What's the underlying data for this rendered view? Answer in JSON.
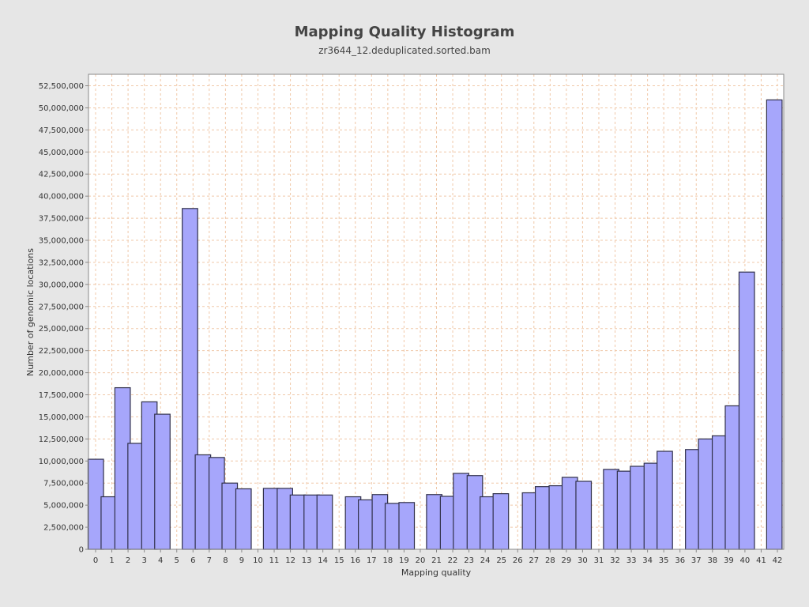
{
  "chart_data": {
    "type": "bar",
    "title": "Mapping Quality Histogram",
    "subtitle": "zr3644_12.deduplicated.sorted.bam",
    "xlabel": "Mapping quality",
    "ylabel": "Number of genomic locations",
    "x_ticks": [
      "0",
      "1",
      "2",
      "3",
      "4",
      "5",
      "6",
      "7",
      "8",
      "9",
      "10",
      "11",
      "12",
      "13",
      "14",
      "15",
      "16",
      "17",
      "18",
      "19",
      "20",
      "21",
      "22",
      "23",
      "24",
      "25",
      "26",
      "27",
      "28",
      "29",
      "30",
      "31",
      "32",
      "33",
      "34",
      "35",
      "36",
      "37",
      "38",
      "39",
      "40",
      "41",
      "42"
    ],
    "y_ticks": [
      "0",
      "2,500,000",
      "5,000,000",
      "7,500,000",
      "10,000,000",
      "12,500,000",
      "15,000,000",
      "17,500,000",
      "20,000,000",
      "22,500,000",
      "25,000,000",
      "27,500,000",
      "30,000,000",
      "32,500,000",
      "35,000,000",
      "37,500,000",
      "40,000,000",
      "42,500,000",
      "45,000,000",
      "47,500,000",
      "50,000,000",
      "52,500,000"
    ],
    "ylim": [
      0,
      53800000
    ],
    "xlim": [
      0,
      42
    ],
    "grid": true,
    "bars": [
      {
        "x": 0.0,
        "value": 10200000
      },
      {
        "x": 0.8,
        "value": 5950000
      },
      {
        "x": 1.65,
        "value": 18300000
      },
      {
        "x": 2.45,
        "value": 12000000
      },
      {
        "x": 3.3,
        "value": 16700000
      },
      {
        "x": 4.1,
        "value": 15300000
      },
      {
        "x": 5.8,
        "value": 38600000
      },
      {
        "x": 6.6,
        "value": 10700000
      },
      {
        "x": 7.45,
        "value": 10400000
      },
      {
        "x": 8.25,
        "value": 7500000
      },
      {
        "x": 9.1,
        "value": 6850000
      },
      {
        "x": 10.8,
        "value": 6900000
      },
      {
        "x": 11.65,
        "value": 6900000
      },
      {
        "x": 12.45,
        "value": 6150000
      },
      {
        "x": 13.3,
        "value": 6150000
      },
      {
        "x": 14.1,
        "value": 6150000
      },
      {
        "x": 15.85,
        "value": 5950000
      },
      {
        "x": 16.65,
        "value": 5600000
      },
      {
        "x": 17.5,
        "value": 6200000
      },
      {
        "x": 18.3,
        "value": 5200000
      },
      {
        "x": 19.15,
        "value": 5300000
      },
      {
        "x": 20.85,
        "value": 6200000
      },
      {
        "x": 21.7,
        "value": 6000000
      },
      {
        "x": 22.5,
        "value": 8600000
      },
      {
        "x": 23.35,
        "value": 8350000
      },
      {
        "x": 24.15,
        "value": 5950000
      },
      {
        "x": 24.95,
        "value": 6300000
      },
      {
        "x": 26.75,
        "value": 6400000
      },
      {
        "x": 27.55,
        "value": 7100000
      },
      {
        "x": 28.4,
        "value": 7200000
      },
      {
        "x": 29.2,
        "value": 8150000
      },
      {
        "x": 30.05,
        "value": 7700000
      },
      {
        "x": 31.75,
        "value": 9050000
      },
      {
        "x": 32.6,
        "value": 8850000
      },
      {
        "x": 33.4,
        "value": 9400000
      },
      {
        "x": 34.25,
        "value": 9750000
      },
      {
        "x": 35.05,
        "value": 11100000
      },
      {
        "x": 36.8,
        "value": 11300000
      },
      {
        "x": 37.6,
        "value": 12500000
      },
      {
        "x": 38.45,
        "value": 12850000
      },
      {
        "x": 39.25,
        "value": 16250000
      },
      {
        "x": 40.1,
        "value": 31400000
      },
      {
        "x": 41.8,
        "value": 50900000
      }
    ],
    "bar_width": 0.95,
    "colors": {
      "bar_fill": "#a6a6fb",
      "bar_stroke": "#30304a",
      "plot_bg": "#ffffff",
      "grid": "#f0c8a8",
      "page_bg": "#e6e6e6",
      "axis": "#888888"
    }
  }
}
